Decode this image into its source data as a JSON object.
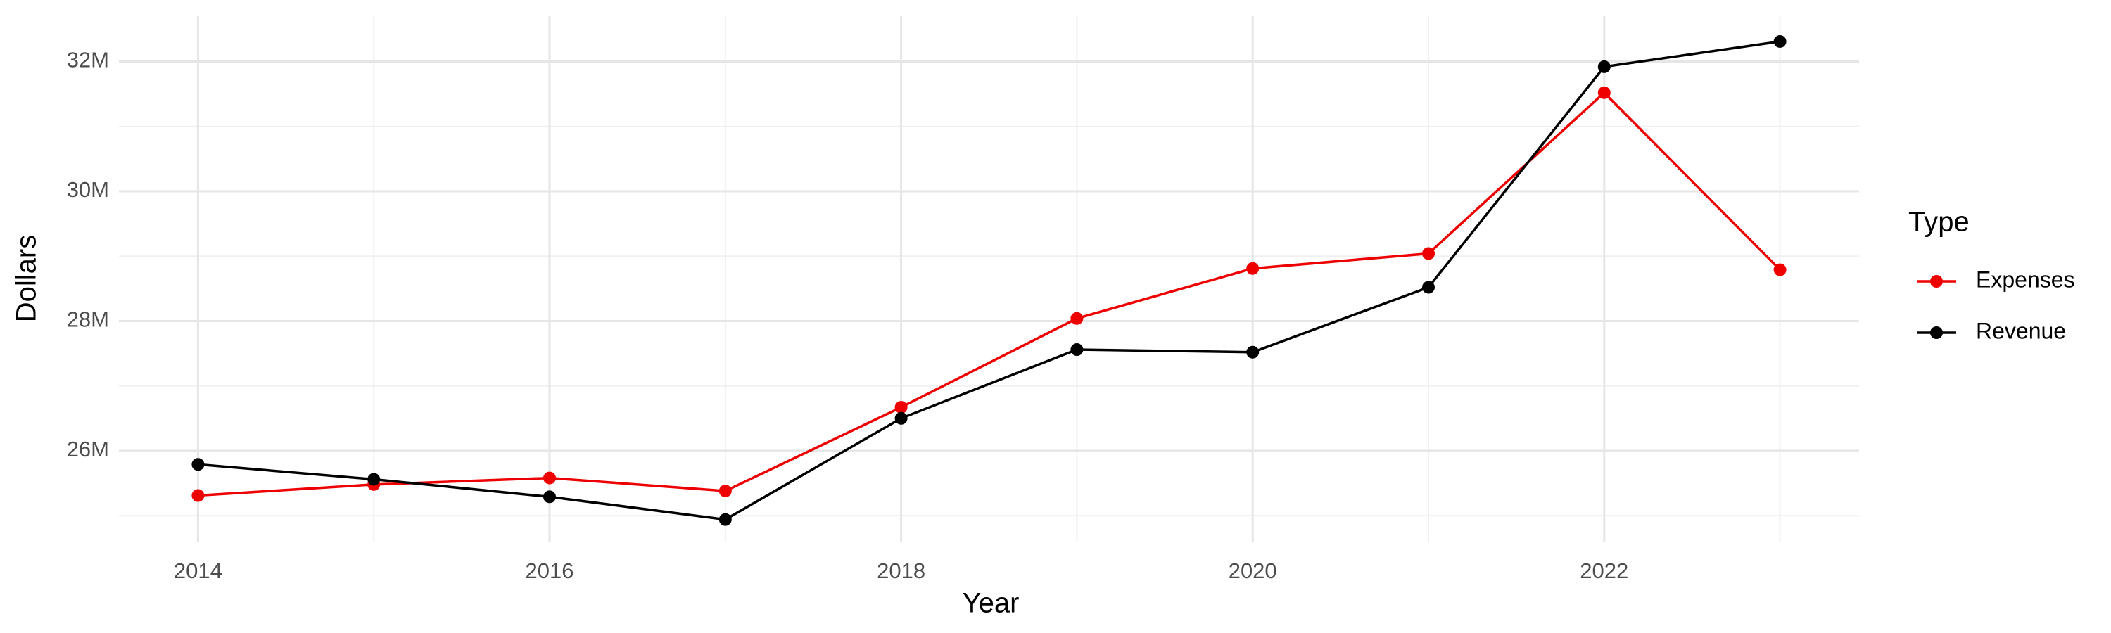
{
  "chart_data": {
    "type": "line",
    "x_label": "Year",
    "y_label": "Dollars",
    "x": [
      2014,
      2015,
      2016,
      2017,
      2018,
      2019,
      2020,
      2021,
      2022,
      2023
    ],
    "series": [
      {
        "name": "Expenses",
        "color": "#ee0000",
        "values": [
          25310000,
          25480000,
          25580000,
          25380000,
          26670000,
          28040000,
          28810000,
          29040000,
          31520000,
          28790000
        ]
      },
      {
        "name": "Revenue",
        "color": "#000000",
        "values": [
          25790000,
          25560000,
          25290000,
          24940000,
          26500000,
          27560000,
          27520000,
          28520000,
          31920000,
          32310000
        ]
      }
    ],
    "legend_title": "Type",
    "legend": "right",
    "xlim": [
      2013.55,
      2023.45
    ],
    "xticks": [
      2014,
      2016,
      2018,
      2020,
      2022
    ],
    "x_minor_ticks": [
      2015,
      2017,
      2019,
      2021,
      2023
    ],
    "ylim": [
      24600000,
      32700000
    ],
    "yticks": [
      {
        "value": 26000000,
        "label": "26M"
      },
      {
        "value": 28000000,
        "label": "28M"
      },
      {
        "value": 30000000,
        "label": "30M"
      },
      {
        "value": 32000000,
        "label": "32M"
      }
    ],
    "y_minor_ticks": [
      25000000,
      27000000,
      29000000,
      31000000
    ],
    "grid": true
  }
}
